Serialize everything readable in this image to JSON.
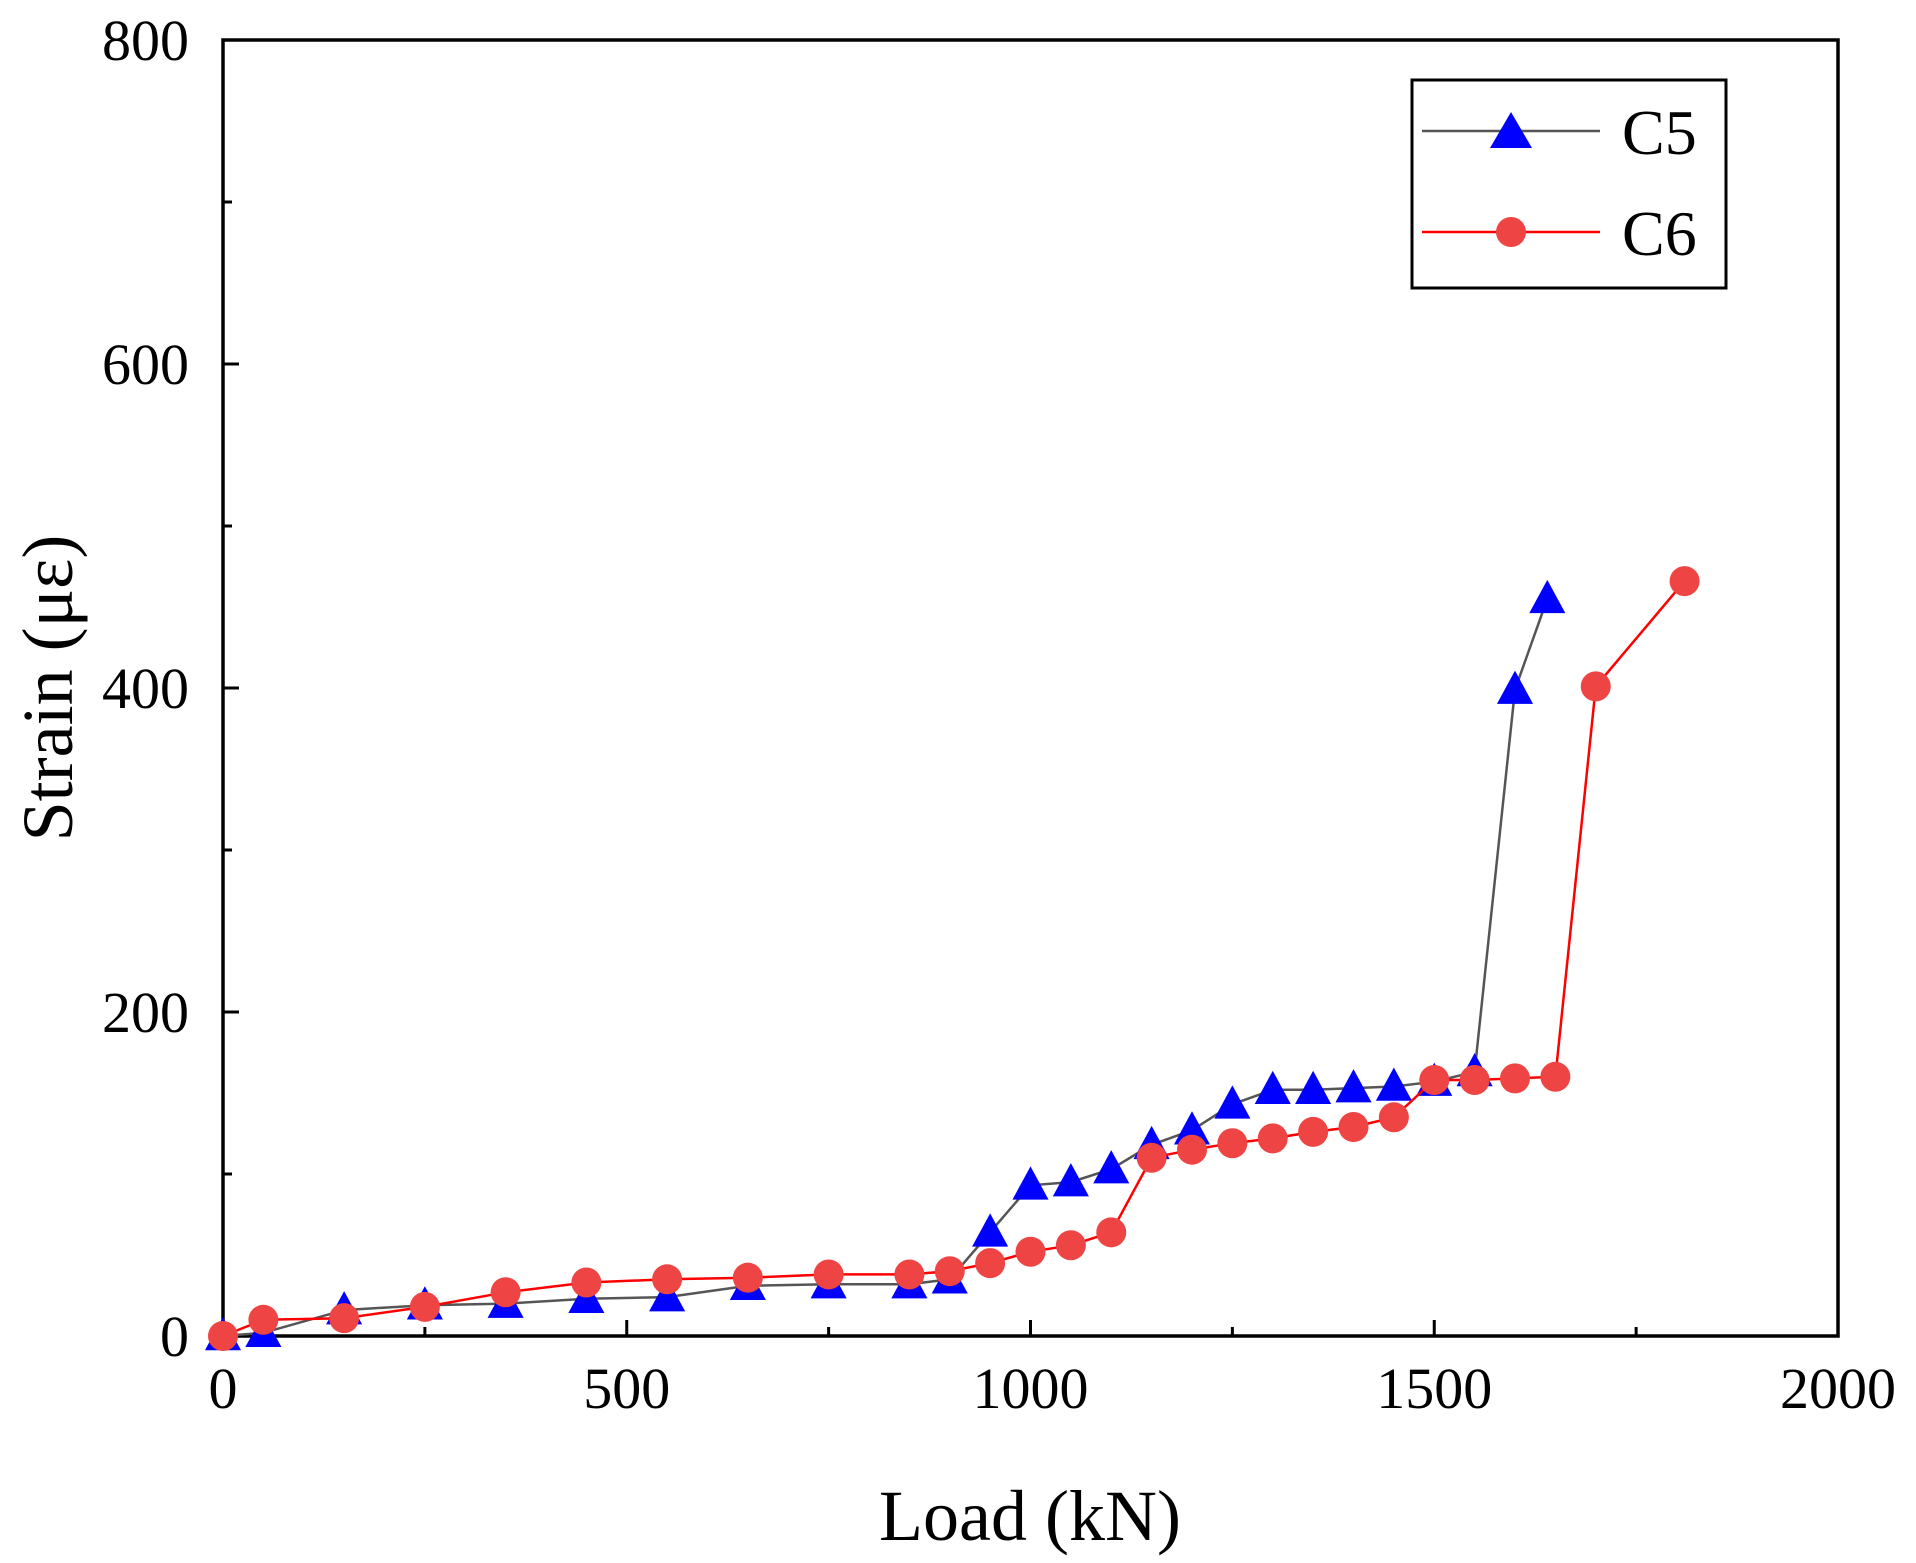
{
  "chart_data": {
    "type": "line",
    "title": "",
    "xlabel": "Load (kN)",
    "ylabel": "Strain (με)",
    "xlim": [
      0,
      2000
    ],
    "ylim": [
      0,
      800
    ],
    "x_ticks": [
      0,
      500,
      1000,
      1500,
      2000
    ],
    "x_tick_labels": [
      "0",
      "500",
      "1000",
      "1500",
      "2000"
    ],
    "y_ticks": [
      0,
      200,
      400,
      600,
      800
    ],
    "y_tick_labels": [
      "0",
      "200",
      "400",
      "600",
      "800"
    ],
    "grid": false,
    "legend_position": "top-right",
    "series": [
      {
        "name": "C5",
        "marker": "triangle",
        "line_color": "#555555",
        "marker_color": "#0000ff",
        "x": [
          0,
          50,
          150,
          250,
          350,
          450,
          550,
          650,
          750,
          850,
          900,
          950,
          1000,
          1050,
          1100,
          1150,
          1200,
          1250,
          1300,
          1350,
          1400,
          1450,
          1500,
          1550,
          1600,
          1640
        ],
        "y": [
          0,
          2,
          16,
          19,
          20,
          23,
          24,
          31,
          32,
          32,
          35,
          64,
          93,
          95,
          103,
          118,
          127,
          143,
          152,
          152,
          153,
          154,
          157,
          163,
          399,
          455
        ]
      },
      {
        "name": "C6",
        "marker": "circle",
        "line_color": "#ff0000",
        "marker_color": "#ef4444",
        "x": [
          0,
          50,
          150,
          250,
          350,
          450,
          550,
          650,
          750,
          850,
          900,
          950,
          1000,
          1050,
          1100,
          1150,
          1200,
          1250,
          1300,
          1350,
          1400,
          1450,
          1500,
          1550,
          1600,
          1650,
          1700,
          1810
        ],
        "y": [
          0,
          10,
          11,
          18,
          27,
          33,
          35,
          36,
          38,
          38,
          40,
          45,
          52,
          56,
          64,
          110,
          115,
          119,
          122,
          126,
          129,
          135,
          158,
          158,
          159,
          160,
          401,
          466
        ]
      }
    ]
  }
}
